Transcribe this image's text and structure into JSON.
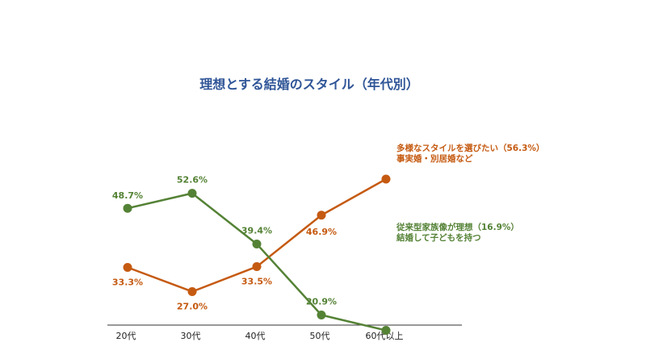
{
  "chart_data": {
    "type": "line",
    "title": "理想とする結婚のスタイル（年代別）",
    "categories": [
      "20代",
      "30代",
      "40代",
      "50代",
      "60代以上"
    ],
    "xlabel": "",
    "ylabel": "",
    "ylim": [
      0,
      100
    ],
    "grid": false,
    "legend": "none",
    "series": [
      {
        "label_lines": [
          "多様なスタイルを選びたい（56.3%）",
          "事実婚・別居婚など"
        ],
        "color": "#c55a11",
        "values": [
          33.3,
          27.0,
          33.5,
          46.9,
          56.3
        ],
        "data_labels": [
          "33.3%",
          "27.0%",
          "33.5%",
          "46.9%",
          ""
        ]
      },
      {
        "label_lines": [
          "従来型家族像が理想（16.9%）",
          "結婚して子どもを持つ"
        ],
        "color": "#548235",
        "values": [
          48.7,
          52.6,
          39.4,
          20.9,
          16.9
        ],
        "data_labels": [
          "48.7%",
          "52.6%",
          "39.4%",
          "20.9%",
          ""
        ]
      }
    ]
  }
}
